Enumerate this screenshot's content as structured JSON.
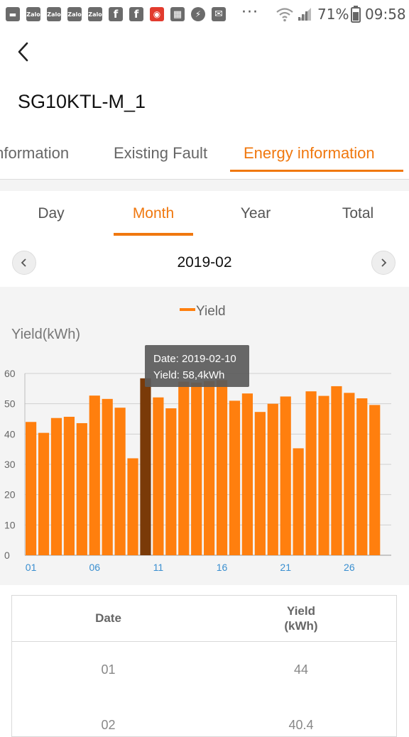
{
  "status_bar": {
    "notification_icons": [
      "message-icon",
      "zalo-icon",
      "zalo-icon",
      "zalo-icon",
      "zalo-icon",
      "facebook-icon",
      "facebook-icon",
      "news-icon",
      "app-icon",
      "messenger-icon",
      "mail-icon"
    ],
    "zalo_label": "Zalo",
    "more": "···",
    "battery_percent": "71%",
    "time": "09:58"
  },
  "header": {
    "device_name": "SG10KTL-M_1"
  },
  "tabs": [
    {
      "label": "Information",
      "active": false
    },
    {
      "label": "Existing Fault",
      "active": false
    },
    {
      "label": "Energy information",
      "active": true
    }
  ],
  "period_tabs": [
    {
      "label": "Day",
      "active": false
    },
    {
      "label": "Month",
      "active": true
    },
    {
      "label": "Year",
      "active": false
    },
    {
      "label": "Total",
      "active": false
    }
  ],
  "period": {
    "current": "2019-02"
  },
  "tooltip": {
    "date_line": "Date: 2019-02-10",
    "yield_line": "Yield: 58,4kWh"
  },
  "chart_data": {
    "type": "bar",
    "title": "",
    "legend": [
      "Yield"
    ],
    "legend_position": "top-center",
    "ylabel": "Yield(kWh)",
    "xlabel": "",
    "ylim": [
      0,
      60
    ],
    "yticks": [
      "0",
      "10",
      "20",
      "30",
      "40",
      "50",
      "60"
    ],
    "xticks": [
      "01",
      "06",
      "11",
      "16",
      "21",
      "26"
    ],
    "categories": [
      "01",
      "02",
      "03",
      "04",
      "05",
      "06",
      "07",
      "08",
      "09",
      "10",
      "11",
      "12",
      "13",
      "14",
      "15",
      "16",
      "17",
      "18",
      "19",
      "20",
      "21",
      "22",
      "23",
      "24",
      "25",
      "26",
      "27",
      "28"
    ],
    "series": [
      {
        "name": "Yield",
        "color": "#ff7f0e",
        "values": [
          44,
          40.4,
          45.3,
          45.7,
          43.6,
          52.7,
          51.6,
          48.7,
          32,
          58.4,
          52.1,
          48.5,
          57.3,
          57,
          57.5,
          57.8,
          51,
          53.4,
          47.3,
          50,
          52.4,
          35.3,
          54.1,
          52.6,
          55.8,
          53.6,
          51.8,
          49.6
        ]
      }
    ],
    "highlighted_index": 9,
    "highlight_color": "#7a3a08",
    "grid": true
  },
  "table": {
    "headers": [
      "Date",
      "Yield\n(kWh)"
    ],
    "rows": [
      [
        "01",
        "44"
      ],
      [
        "02",
        "40.4"
      ]
    ]
  }
}
